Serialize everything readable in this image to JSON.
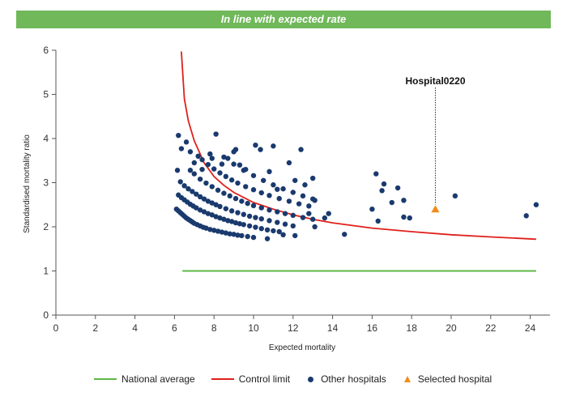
{
  "banner": {
    "text": "In line with expected rate"
  },
  "colors": {
    "banner": "#70b85a",
    "national_average": "#5cb845",
    "control_limit": "#e0201b",
    "other_hospitals": "#1a3a6e",
    "selected_hospital": "#f08c1a",
    "axis": "#555555"
  },
  "legend": {
    "national": "National average",
    "control": "Control limit",
    "others": "Other hospitals",
    "selected": "Selected hospital"
  },
  "chart_data": {
    "type": "scatter",
    "xlabel": "Expected mortality",
    "ylabel": "Standardised mortality ratio",
    "xlim": [
      0,
      25
    ],
    "ylim": [
      0,
      6
    ],
    "xticks": [
      0,
      2,
      4,
      6,
      8,
      10,
      12,
      14,
      16,
      18,
      20,
      22,
      24
    ],
    "yticks": [
      0,
      1,
      2,
      3,
      4,
      5,
      6
    ],
    "grid": false,
    "legend_position": "bottom",
    "national_average": {
      "name": "National average",
      "y": 1,
      "x_range": [
        6.4,
        24.3
      ]
    },
    "control_limit": {
      "name": "Control limit",
      "points": [
        [
          6.35,
          5.97
        ],
        [
          6.5,
          4.9
        ],
        [
          6.7,
          4.4
        ],
        [
          7.0,
          3.95
        ],
        [
          7.5,
          3.45
        ],
        [
          8.0,
          3.14
        ],
        [
          8.5,
          2.94
        ],
        [
          9.0,
          2.78
        ],
        [
          10.0,
          2.55
        ],
        [
          11.0,
          2.4
        ],
        [
          12.0,
          2.27
        ],
        [
          13.0,
          2.17
        ],
        [
          14.0,
          2.09
        ],
        [
          16.0,
          1.97
        ],
        [
          18.0,
          1.89
        ],
        [
          20.0,
          1.82
        ],
        [
          22.0,
          1.77
        ],
        [
          24.3,
          1.72
        ]
      ]
    },
    "selected_hospital": {
      "name": "Selected hospital",
      "label": "Hospital0220",
      "x": 19.2,
      "y": 2.4
    },
    "other_hospitals": {
      "name": "Other hospitals",
      "points": [
        [
          6.1,
          2.4
        ],
        [
          6.2,
          2.36
        ],
        [
          6.3,
          2.32
        ],
        [
          6.4,
          2.28
        ],
        [
          6.5,
          2.24
        ],
        [
          6.6,
          2.2
        ],
        [
          6.7,
          2.17
        ],
        [
          6.8,
          2.14
        ],
        [
          6.9,
          2.11
        ],
        [
          7.0,
          2.08
        ],
        [
          7.15,
          2.05
        ],
        [
          7.3,
          2.02
        ],
        [
          7.45,
          1.99
        ],
        [
          7.6,
          1.97
        ],
        [
          7.8,
          1.94
        ],
        [
          8.0,
          1.92
        ],
        [
          8.2,
          1.9
        ],
        [
          8.4,
          1.88
        ],
        [
          8.6,
          1.86
        ],
        [
          8.8,
          1.84
        ],
        [
          9.0,
          1.83
        ],
        [
          9.2,
          1.81
        ],
        [
          9.4,
          1.8
        ],
        [
          9.7,
          1.78
        ],
        [
          10.0,
          1.76
        ],
        [
          6.2,
          2.72
        ],
        [
          6.35,
          2.66
        ],
        [
          6.5,
          2.61
        ],
        [
          6.65,
          2.56
        ],
        [
          6.8,
          2.51
        ],
        [
          6.95,
          2.47
        ],
        [
          7.1,
          2.43
        ],
        [
          7.3,
          2.38
        ],
        [
          7.5,
          2.34
        ],
        [
          7.7,
          2.3
        ],
        [
          7.9,
          2.27
        ],
        [
          8.1,
          2.23
        ],
        [
          8.3,
          2.2
        ],
        [
          8.5,
          2.17
        ],
        [
          8.7,
          2.14
        ],
        [
          8.9,
          2.12
        ],
        [
          9.1,
          2.09
        ],
        [
          9.3,
          2.07
        ],
        [
          9.5,
          2.05
        ],
        [
          9.8,
          2.02
        ],
        [
          10.1,
          1.99
        ],
        [
          10.4,
          1.96
        ],
        [
          10.7,
          1.93
        ],
        [
          11.0,
          1.91
        ],
        [
          11.3,
          1.89
        ],
        [
          6.15,
          3.28
        ],
        [
          6.3,
          3.02
        ],
        [
          6.5,
          2.93
        ],
        [
          6.7,
          2.86
        ],
        [
          6.9,
          2.8
        ],
        [
          7.1,
          2.74
        ],
        [
          7.3,
          2.68
        ],
        [
          7.5,
          2.63
        ],
        [
          7.7,
          2.58
        ],
        [
          7.9,
          2.54
        ],
        [
          8.1,
          2.5
        ],
        [
          8.3,
          2.46
        ],
        [
          8.6,
          2.41
        ],
        [
          8.9,
          2.36
        ],
        [
          9.2,
          2.32
        ],
        [
          9.5,
          2.28
        ],
        [
          9.8,
          2.24
        ],
        [
          10.1,
          2.21
        ],
        [
          10.4,
          2.18
        ],
        [
          10.8,
          2.14
        ],
        [
          11.2,
          2.1
        ],
        [
          11.6,
          2.06
        ],
        [
          12.0,
          2.02
        ],
        [
          6.8,
          3.28
        ],
        [
          7.0,
          3.2
        ],
        [
          7.3,
          3.08
        ],
        [
          7.6,
          2.99
        ],
        [
          7.9,
          2.91
        ],
        [
          8.2,
          2.83
        ],
        [
          8.5,
          2.76
        ],
        [
          8.8,
          2.7
        ],
        [
          9.1,
          2.64
        ],
        [
          9.4,
          2.58
        ],
        [
          9.7,
          2.53
        ],
        [
          10.0,
          2.48
        ],
        [
          10.4,
          2.43
        ],
        [
          10.8,
          2.38
        ],
        [
          11.2,
          2.34
        ],
        [
          11.6,
          2.3
        ],
        [
          12.0,
          2.26
        ],
        [
          12.5,
          2.21
        ],
        [
          13.0,
          2.17
        ],
        [
          7.4,
          3.52
        ],
        [
          7.7,
          3.41
        ],
        [
          8.0,
          3.31
        ],
        [
          8.3,
          3.22
        ],
        [
          8.6,
          3.14
        ],
        [
          8.9,
          3.06
        ],
        [
          9.2,
          2.99
        ],
        [
          9.6,
          2.91
        ],
        [
          10.0,
          2.84
        ],
        [
          10.4,
          2.77
        ],
        [
          10.8,
          2.71
        ],
        [
          11.3,
          2.64
        ],
        [
          11.8,
          2.58
        ],
        [
          12.3,
          2.52
        ],
        [
          12.8,
          2.47
        ],
        [
          8.5,
          3.58
        ],
        [
          9.0,
          3.42
        ],
        [
          9.5,
          3.28
        ],
        [
          10.0,
          3.16
        ],
        [
          10.5,
          3.05
        ],
        [
          11.0,
          2.95
        ],
        [
          11.5,
          2.86
        ],
        [
          12.0,
          2.78
        ],
        [
          12.5,
          2.7
        ],
        [
          13.0,
          2.63
        ],
        [
          6.2,
          4.07
        ],
        [
          6.35,
          3.77
        ],
        [
          6.6,
          3.92
        ],
        [
          6.8,
          3.7
        ],
        [
          7.0,
          3.45
        ],
        [
          7.2,
          3.6
        ],
        [
          7.4,
          3.3
        ],
        [
          7.8,
          3.65
        ],
        [
          7.9,
          3.55
        ],
        [
          8.1,
          4.1
        ],
        [
          8.4,
          3.42
        ],
        [
          8.7,
          3.55
        ],
        [
          9.0,
          3.7
        ],
        [
          9.1,
          3.75
        ],
        [
          9.3,
          3.4
        ],
        [
          9.6,
          3.3
        ],
        [
          10.1,
          3.85
        ],
        [
          10.35,
          3.75
        ],
        [
          10.8,
          3.25
        ],
        [
          11.0,
          3.83
        ],
        [
          11.2,
          2.85
        ],
        [
          12.4,
          3.75
        ],
        [
          12.6,
          2.95
        ],
        [
          13.0,
          3.1
        ],
        [
          13.1,
          2.6
        ],
        [
          11.8,
          3.45
        ],
        [
          12.1,
          3.05
        ],
        [
          12.8,
          2.3
        ],
        [
          13.1,
          2.0
        ],
        [
          13.6,
          2.2
        ],
        [
          13.8,
          2.3
        ],
        [
          11.5,
          1.82
        ],
        [
          12.1,
          1.8
        ],
        [
          10.7,
          1.73
        ],
        [
          14.6,
          1.83
        ],
        [
          16.2,
          3.2
        ],
        [
          16.5,
          2.82
        ],
        [
          16.6,
          2.97
        ],
        [
          17.0,
          2.55
        ],
        [
          17.3,
          2.88
        ],
        [
          17.6,
          2.6
        ],
        [
          16.0,
          2.4
        ],
        [
          16.3,
          2.13
        ],
        [
          17.6,
          2.22
        ],
        [
          17.9,
          2.2
        ],
        [
          20.2,
          2.7
        ],
        [
          23.8,
          2.25
        ],
        [
          24.3,
          2.5
        ]
      ]
    }
  }
}
